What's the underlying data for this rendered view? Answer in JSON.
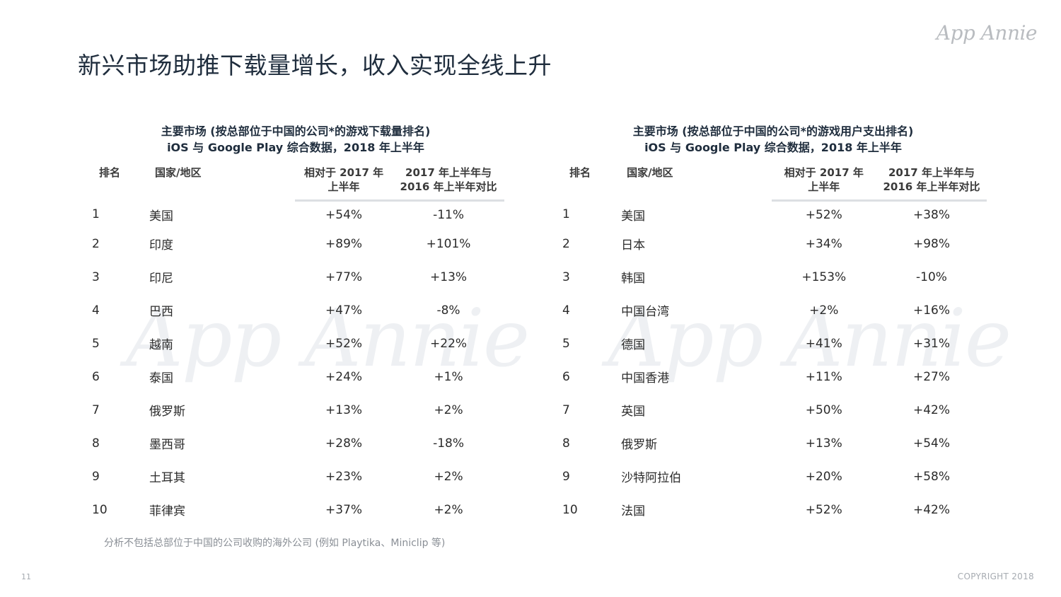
{
  "brand": {
    "logo_text": "App Annie",
    "watermark_text": "App Annie"
  },
  "title": "新兴市场助推下载量增长，收入实现全线上升",
  "left_table": {
    "title_line1": "主要市场 (按总部位于中国的公司*的游戏下载量排名)",
    "title_line2": "iOS 与 Google Play 综合数据，2018 年上半年",
    "headers": {
      "rank": "排名",
      "country": "国家/地区",
      "v1_line1": "相对于 2017 年",
      "v1_line2": "上半年",
      "v2_line1": "2017 年上半年与",
      "v2_line2": "2016 年上半年对比"
    },
    "rows": [
      {
        "rank": "1",
        "country": "美国",
        "v1": "+54%",
        "v2": "-11%"
      },
      {
        "rank": "2",
        "country": "印度",
        "v1": "+89%",
        "v2": "+101%"
      },
      {
        "rank": "3",
        "country": "印尼",
        "v1": "+77%",
        "v2": "+13%"
      },
      {
        "rank": "4",
        "country": "巴西",
        "v1": "+47%",
        "v2": "-8%"
      },
      {
        "rank": "5",
        "country": "越南",
        "v1": "+52%",
        "v2": "+22%"
      },
      {
        "rank": "6",
        "country": "泰国",
        "v1": "+24%",
        "v2": "+1%"
      },
      {
        "rank": "7",
        "country": "俄罗斯",
        "v1": "+13%",
        "v2": "+2%"
      },
      {
        "rank": "8",
        "country": "墨西哥",
        "v1": "+28%",
        "v2": "-18%"
      },
      {
        "rank": "9",
        "country": "土耳其",
        "v1": "+23%",
        "v2": "+2%"
      },
      {
        "rank": "10",
        "country": "菲律宾",
        "v1": "+37%",
        "v2": "+2%"
      }
    ]
  },
  "right_table": {
    "title_line1": "主要市场 (按总部位于中国的公司*的游戏用户支出排名)",
    "title_line2": "iOS 与 Google Play 综合数据，2018 年上半年",
    "headers": {
      "rank": "排名",
      "country": "国家/地区",
      "v1_line1": "相对于 2017 年",
      "v1_line2": "上半年",
      "v2_line1": "2017 年上半年与",
      "v2_line2": "2016 年上半年对比"
    },
    "rows": [
      {
        "rank": "1",
        "country": "美国",
        "v1": "+52%",
        "v2": "+38%"
      },
      {
        "rank": "2",
        "country": "日本",
        "v1": "+34%",
        "v2": "+98%"
      },
      {
        "rank": "3",
        "country": "韩国",
        "v1": "+153%",
        "v2": "-10%"
      },
      {
        "rank": "4",
        "country": "中国台湾",
        "v1": "+2%",
        "v2": "+16%"
      },
      {
        "rank": "5",
        "country": "德国",
        "v1": "+41%",
        "v2": "+31%"
      },
      {
        "rank": "6",
        "country": "中国香港",
        "v1": "+11%",
        "v2": "+27%"
      },
      {
        "rank": "7",
        "country": "英国",
        "v1": "+50%",
        "v2": "+42%"
      },
      {
        "rank": "8",
        "country": "俄罗斯",
        "v1": "+13%",
        "v2": "+54%"
      },
      {
        "rank": "9",
        "country": "沙特阿拉伯",
        "v1": "+20%",
        "v2": "+58%"
      },
      {
        "rank": "10",
        "country": "法国",
        "v1": "+52%",
        "v2": "+42%"
      }
    ]
  },
  "footnote": "分析不包括总部位于中国的公司收购的海外公司 (例如 Playtika、Miniclip 等)",
  "page_number": "11",
  "copyright": "COPYRIGHT 2018"
}
